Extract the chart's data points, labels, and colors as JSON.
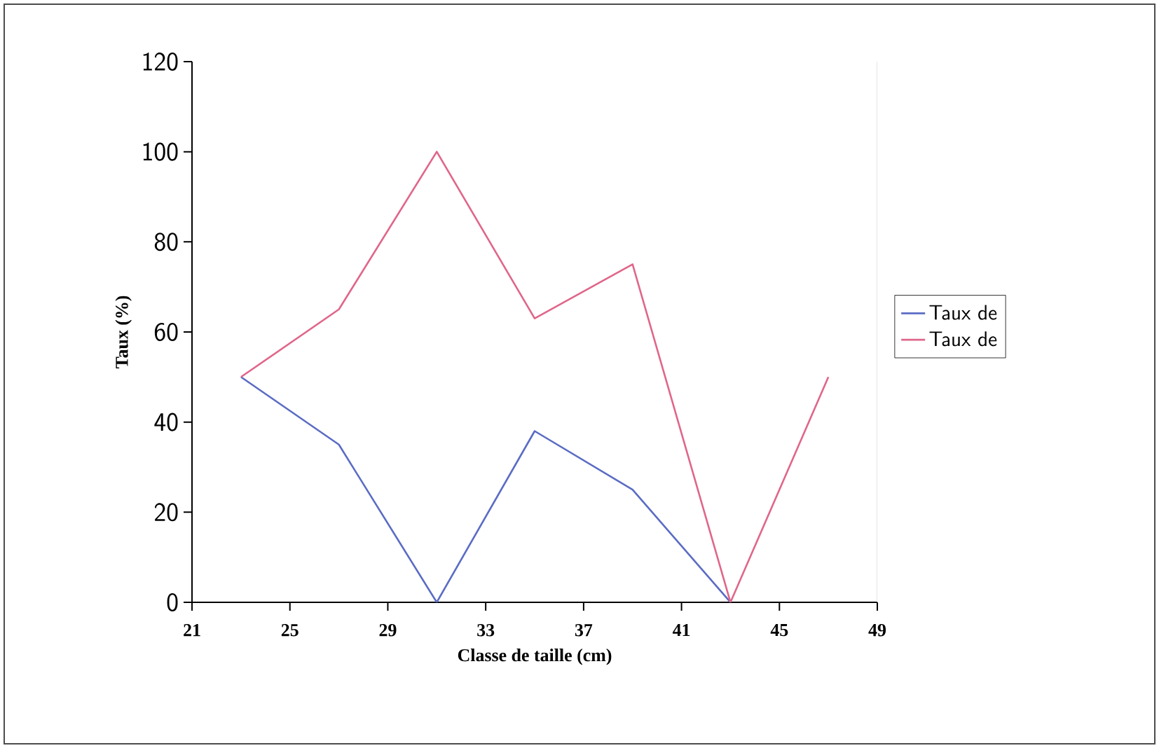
{
  "chart_data": {
    "type": "line",
    "xlabel": "Classe de taille  (cm)",
    "ylabel": "Taux (%)",
    "x": [
      23,
      27,
      31,
      35,
      39,
      43,
      47
    ],
    "series": [
      {
        "name": "Taux de",
        "color": "#5b6cc4",
        "values": [
          50,
          35,
          0,
          38,
          25,
          0,
          null
        ]
      },
      {
        "name": "Taux de",
        "color": "#e0668a",
        "values": [
          50,
          65,
          100,
          63,
          75,
          0,
          50
        ]
      }
    ],
    "xlim": [
      21,
      49
    ],
    "xticks": [
      21,
      25,
      29,
      33,
      37,
      41,
      45,
      49
    ],
    "ylim": [
      0,
      120
    ],
    "yticks": [
      0,
      20,
      40,
      60,
      80,
      100,
      120
    ],
    "legend": "right",
    "grid": false,
    "marker": "none",
    "line_style": "solid"
  }
}
